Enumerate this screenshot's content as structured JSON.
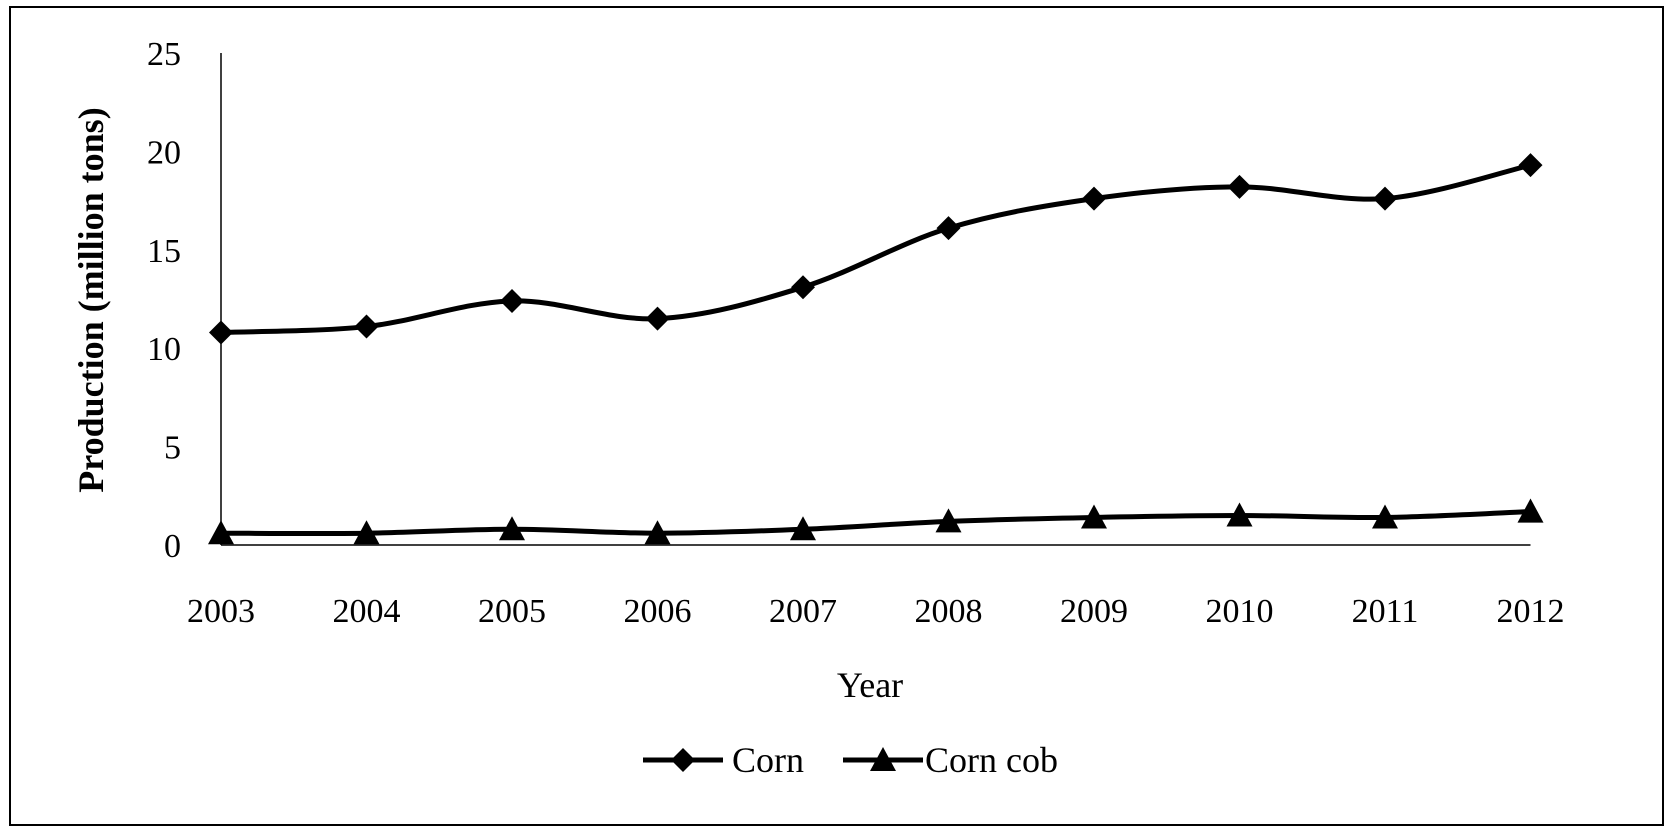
{
  "chart_data": {
    "type": "line",
    "xlabel": "Year",
    "ylabel": "Production  (million tons)",
    "categories": [
      "2003",
      "2004",
      "2005",
      "2006",
      "2007",
      "2008",
      "2009",
      "2010",
      "2011",
      "2012"
    ],
    "ylim": [
      0,
      25
    ],
    "yticks": [
      0,
      5,
      10,
      15,
      20,
      25
    ],
    "grid": false,
    "legend_position": "bottom",
    "series": [
      {
        "name": "Corn",
        "marker": "diamond",
        "values": [
          10.8,
          11.1,
          12.4,
          11.5,
          13.1,
          16.1,
          17.6,
          18.2,
          17.6,
          19.3
        ]
      },
      {
        "name": "Corn cob",
        "marker": "triangle",
        "values": [
          0.6,
          0.6,
          0.8,
          0.6,
          0.8,
          1.2,
          1.4,
          1.5,
          1.4,
          1.7
        ]
      }
    ],
    "colors": {
      "line": "#000000",
      "axis": "#000000"
    }
  }
}
